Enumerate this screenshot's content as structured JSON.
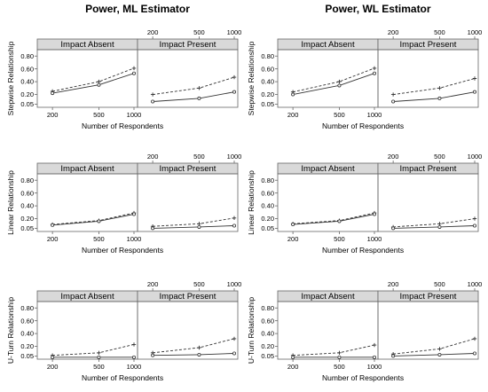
{
  "chart_data": {
    "type": "line",
    "column_titles": [
      "Power, ML Estimator",
      "Power, WL Estimator"
    ],
    "panel_titles": [
      "Impact Absent",
      "Impact Present"
    ],
    "row_labels": [
      "Stepwise Relationship",
      "Linear Relationship",
      "U-Turn Relationship"
    ],
    "xlabel": "Number of Respondents",
    "x": [
      200,
      500,
      1000
    ],
    "x_tick_labels": [
      "200",
      "500",
      "1000"
    ],
    "y_tick_values": [
      0.05,
      0.2,
      0.4,
      0.6,
      0.8
    ],
    "y_tick_labels": [
      "0.05",
      "0.20",
      "0.40",
      "0.60",
      "0.80"
    ],
    "ylim": [
      0.0,
      0.9
    ],
    "grid": false,
    "line_styles": {
      "dashed": "+",
      "solid": "o"
    },
    "panels": [
      {
        "row": 0,
        "col": 0,
        "impact": "absent",
        "dashed": [
          0.25,
          0.4,
          0.61
        ],
        "solid": [
          0.22,
          0.35,
          0.53
        ]
      },
      {
        "row": 0,
        "col": 0,
        "impact": "present",
        "dashed": [
          0.2,
          0.3,
          0.47
        ],
        "solid": [
          0.09,
          0.14,
          0.24
        ]
      },
      {
        "row": 0,
        "col": 1,
        "impact": "absent",
        "dashed": [
          0.24,
          0.4,
          0.61
        ],
        "solid": [
          0.2,
          0.34,
          0.53
        ]
      },
      {
        "row": 0,
        "col": 1,
        "impact": "present",
        "dashed": [
          0.2,
          0.3,
          0.45
        ],
        "solid": [
          0.09,
          0.14,
          0.24
        ]
      },
      {
        "row": 1,
        "col": 0,
        "impact": "absent",
        "dashed": [
          0.11,
          0.17,
          0.29
        ],
        "solid": [
          0.1,
          0.16,
          0.27
        ]
      },
      {
        "row": 1,
        "col": 0,
        "impact": "present",
        "dashed": [
          0.08,
          0.12,
          0.21
        ],
        "solid": [
          0.05,
          0.07,
          0.09
        ]
      },
      {
        "row": 1,
        "col": 1,
        "impact": "absent",
        "dashed": [
          0.12,
          0.17,
          0.29
        ],
        "solid": [
          0.11,
          0.16,
          0.27
        ]
      },
      {
        "row": 1,
        "col": 1,
        "impact": "present",
        "dashed": [
          0.07,
          0.12,
          0.2
        ],
        "solid": [
          0.05,
          0.07,
          0.09
        ]
      },
      {
        "row": 2,
        "col": 0,
        "impact": "absent",
        "dashed": [
          0.06,
          0.1,
          0.23
        ],
        "solid": [
          0.03,
          0.03,
          0.03
        ]
      },
      {
        "row": 2,
        "col": 0,
        "impact": "present",
        "dashed": [
          0.1,
          0.18,
          0.32
        ],
        "solid": [
          0.06,
          0.07,
          0.09
        ]
      },
      {
        "row": 2,
        "col": 1,
        "impact": "absent",
        "dashed": [
          0.06,
          0.1,
          0.22
        ],
        "solid": [
          0.03,
          0.03,
          0.03
        ]
      },
      {
        "row": 2,
        "col": 1,
        "impact": "present",
        "dashed": [
          0.08,
          0.16,
          0.32
        ],
        "solid": [
          0.05,
          0.07,
          0.09
        ]
      }
    ],
    "colors": {
      "strip": "#d9d9d9",
      "line": "#333333",
      "frame": "#666666"
    }
  }
}
